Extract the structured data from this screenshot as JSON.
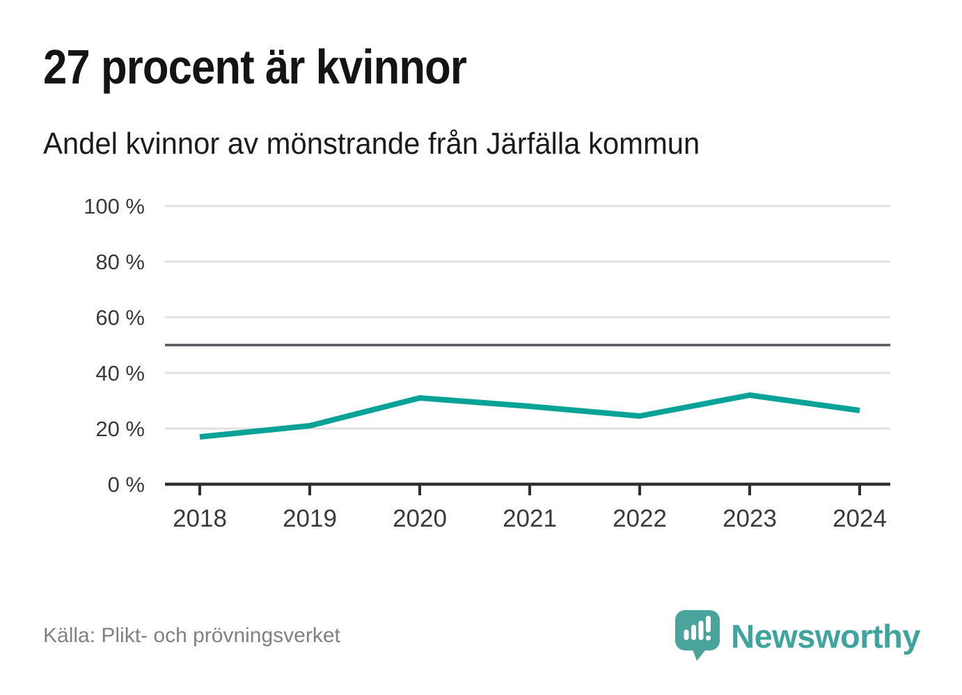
{
  "header": {
    "title": "27 procent är kvinnor",
    "subtitle": "Andel kvinnor av mönstrande från Järfälla kommun"
  },
  "chart_data": {
    "type": "line",
    "title": "Andel kvinnor av mönstrande från Järfälla kommun",
    "x": [
      2018,
      2019,
      2020,
      2021,
      2022,
      2023,
      2024
    ],
    "series": [
      {
        "name": "Andel kvinnor av mönstrande",
        "values": [
          17,
          21,
          31,
          28,
          24.5,
          32,
          26.5
        ]
      }
    ],
    "unit": "%",
    "ylim": [
      0,
      100
    ],
    "yticks": [
      0,
      20,
      40,
      60,
      80,
      100
    ],
    "ytick_labels": [
      "0 %",
      "20 %",
      "40 %",
      "60 %",
      "80 %",
      "100 %"
    ],
    "reference_line": 50,
    "grid": true,
    "legend": "none",
    "colors": {
      "line": "#09a296",
      "reference_line": "#55565b",
      "grid": "#e0e0e0",
      "axis": "#2f2f2f",
      "labels": "#3a3a3a"
    }
  },
  "footer": {
    "source": "Källa: Plikt- och prövningsverket",
    "brand": "Newsworthy",
    "brand_colors": {
      "icon": "#4aa49c",
      "text": "#3ea49d"
    }
  }
}
